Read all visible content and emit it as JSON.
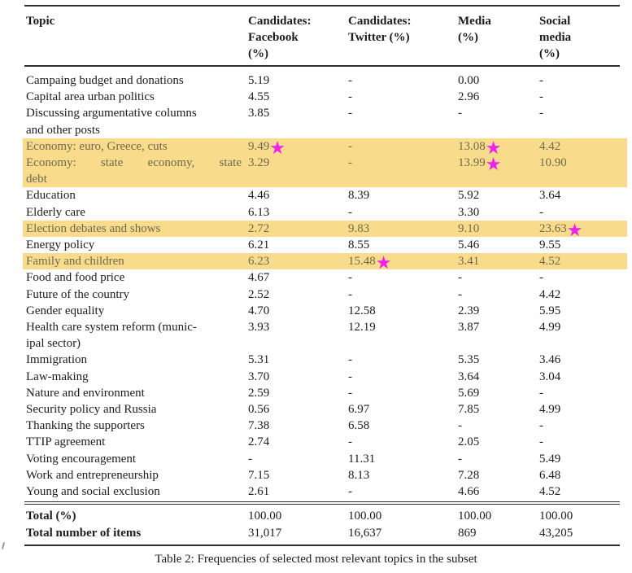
{
  "caption": "Table 2: Frequencies of selected most relevant topics in the subset",
  "icons": {
    "star": "★"
  },
  "colors": {
    "highlight_background": "#f9dc8b",
    "highlight_text": "#6f6950",
    "star_magenta": "#ee22ee",
    "rule": "#2e2e2e",
    "text": "#1c1c1c"
  },
  "header": {
    "topic": "Topic",
    "columns": [
      {
        "name": "candidates-facebook",
        "lines": [
          "Candidates:",
          "Facebook",
          "(%)"
        ]
      },
      {
        "name": "candidates-twitter",
        "lines": [
          "Candidates:",
          "Twitter (%)",
          ""
        ]
      },
      {
        "name": "media",
        "lines": [
          "Media",
          "(%)",
          ""
        ]
      },
      {
        "name": "social-media",
        "lines": [
          "Social",
          "media",
          "(%)"
        ]
      }
    ]
  },
  "rows": [
    {
      "highlight": false,
      "topic_lines": [
        {
          "t": "Campaing budget and donations",
          "stretch": false
        }
      ],
      "values": [
        {
          "v": "5.19",
          "star": false
        },
        {
          "v": "-",
          "star": false
        },
        {
          "v": "0.00",
          "star": false
        },
        {
          "v": "-",
          "star": false
        }
      ]
    },
    {
      "highlight": false,
      "topic_lines": [
        {
          "t": "Capital area urban politics",
          "stretch": false
        }
      ],
      "values": [
        {
          "v": "4.55",
          "star": false
        },
        {
          "v": "-",
          "star": false
        },
        {
          "v": "2.96",
          "star": false
        },
        {
          "v": "-",
          "star": false
        }
      ]
    },
    {
      "highlight": false,
      "topic_lines": [
        {
          "t": "Discussing argumentative columns",
          "stretch": false
        },
        {
          "t": "and other posts",
          "stretch": false
        }
      ],
      "values": [
        {
          "v": "3.85",
          "star": false
        },
        {
          "v": "-",
          "star": false
        },
        {
          "v": "-",
          "star": false
        },
        {
          "v": "-",
          "star": false
        }
      ]
    },
    {
      "highlight": true,
      "topic_lines": [
        {
          "t": "Economy: euro, Greece, cuts",
          "stretch": false
        }
      ],
      "values": [
        {
          "v": "9.49",
          "star": true
        },
        {
          "v": "-",
          "star": false
        },
        {
          "v": "13.08",
          "star": true
        },
        {
          "v": "4.42",
          "star": false
        }
      ]
    },
    {
      "highlight": true,
      "topic_lines": [
        {
          "t": "Economy: state economy, state",
          "stretch": true
        },
        {
          "t": "debt",
          "stretch": false
        }
      ],
      "values": [
        {
          "v": "3.29",
          "star": false
        },
        {
          "v": "-",
          "star": false
        },
        {
          "v": "13.99",
          "star": true
        },
        {
          "v": "10.90",
          "star": false
        }
      ]
    },
    {
      "highlight": false,
      "topic_lines": [
        {
          "t": "Education",
          "stretch": false
        }
      ],
      "values": [
        {
          "v": "4.46",
          "star": false
        },
        {
          "v": "8.39",
          "star": false
        },
        {
          "v": "5.92",
          "star": false
        },
        {
          "v": "3.64",
          "star": false
        }
      ]
    },
    {
      "highlight": false,
      "topic_lines": [
        {
          "t": "Elderly care",
          "stretch": false
        }
      ],
      "values": [
        {
          "v": "6.13",
          "star": false
        },
        {
          "v": "-",
          "star": false
        },
        {
          "v": "3.30",
          "star": false
        },
        {
          "v": "-",
          "star": false
        }
      ]
    },
    {
      "highlight": true,
      "topic_lines": [
        {
          "t": "Election debates and shows",
          "stretch": false
        }
      ],
      "values": [
        {
          "v": "2.72",
          "star": false
        },
        {
          "v": "9.83",
          "star": false
        },
        {
          "v": "9.10",
          "star": false
        },
        {
          "v": "23.63",
          "star": true
        }
      ]
    },
    {
      "highlight": false,
      "topic_lines": [
        {
          "t": "Energy policy",
          "stretch": false
        }
      ],
      "values": [
        {
          "v": "6.21",
          "star": false
        },
        {
          "v": "8.55",
          "star": false
        },
        {
          "v": "5.46",
          "star": false
        },
        {
          "v": "9.55",
          "star": false
        }
      ]
    },
    {
      "highlight": true,
      "topic_lines": [
        {
          "t": "Family and children",
          "stretch": false
        }
      ],
      "values": [
        {
          "v": "6.23",
          "star": false
        },
        {
          "v": "15.48",
          "star": true
        },
        {
          "v": "3.41",
          "star": false
        },
        {
          "v": "4.52",
          "star": false
        }
      ]
    },
    {
      "highlight": false,
      "topic_lines": [
        {
          "t": "Food and food price",
          "stretch": false
        }
      ],
      "values": [
        {
          "v": "4.67",
          "star": false
        },
        {
          "v": "-",
          "star": false
        },
        {
          "v": "-",
          "star": false
        },
        {
          "v": "-",
          "star": false
        }
      ]
    },
    {
      "highlight": false,
      "topic_lines": [
        {
          "t": "Future of the country",
          "stretch": false
        }
      ],
      "values": [
        {
          "v": "2.52",
          "star": false
        },
        {
          "v": "-",
          "star": false
        },
        {
          "v": "-",
          "star": false
        },
        {
          "v": "4.42",
          "star": false
        }
      ]
    },
    {
      "highlight": false,
      "topic_lines": [
        {
          "t": "Gender equality",
          "stretch": false
        }
      ],
      "values": [
        {
          "v": "4.70",
          "star": false
        },
        {
          "v": "12.58",
          "star": false
        },
        {
          "v": "2.39",
          "star": false
        },
        {
          "v": "5.95",
          "star": false
        }
      ]
    },
    {
      "highlight": false,
      "topic_lines": [
        {
          "t": "Health care system reform (munic-",
          "stretch": false
        },
        {
          "t": "ipal sector)",
          "stretch": false
        }
      ],
      "values": [
        {
          "v": "3.93",
          "star": false
        },
        {
          "v": "12.19",
          "star": false
        },
        {
          "v": "3.87",
          "star": false
        },
        {
          "v": "4.99",
          "star": false
        }
      ]
    },
    {
      "highlight": false,
      "topic_lines": [
        {
          "t": "Immigration",
          "stretch": false
        }
      ],
      "values": [
        {
          "v": "5.31",
          "star": false
        },
        {
          "v": "-",
          "star": false
        },
        {
          "v": "5.35",
          "star": false
        },
        {
          "v": "3.46",
          "star": false
        }
      ]
    },
    {
      "highlight": false,
      "topic_lines": [
        {
          "t": "Law-making",
          "stretch": false
        }
      ],
      "values": [
        {
          "v": "3.70",
          "star": false
        },
        {
          "v": "-",
          "star": false
        },
        {
          "v": "3.64",
          "star": false
        },
        {
          "v": "3.04",
          "star": false
        }
      ]
    },
    {
      "highlight": false,
      "topic_lines": [
        {
          "t": "Nature and environment",
          "stretch": false
        }
      ],
      "values": [
        {
          "v": "2.59",
          "star": false
        },
        {
          "v": "-",
          "star": false
        },
        {
          "v": "5.69",
          "star": false
        },
        {
          "v": "-",
          "star": false
        }
      ]
    },
    {
      "highlight": false,
      "topic_lines": [
        {
          "t": "Security policy and Russia",
          "stretch": false
        }
      ],
      "values": [
        {
          "v": "0.56",
          "star": false
        },
        {
          "v": "6.97",
          "star": false
        },
        {
          "v": "7.85",
          "star": false
        },
        {
          "v": "4.99",
          "star": false
        }
      ]
    },
    {
      "highlight": false,
      "topic_lines": [
        {
          "t": "Thanking the supporters",
          "stretch": false
        }
      ],
      "values": [
        {
          "v": "7.38",
          "star": false
        },
        {
          "v": "6.58",
          "star": false
        },
        {
          "v": "-",
          "star": false
        },
        {
          "v": "-",
          "star": false
        }
      ]
    },
    {
      "highlight": false,
      "topic_lines": [
        {
          "t": "TTIP agreement",
          "stretch": false
        }
      ],
      "values": [
        {
          "v": "2.74",
          "star": false
        },
        {
          "v": "-",
          "star": false
        },
        {
          "v": "2.05",
          "star": false
        },
        {
          "v": "-",
          "star": false
        }
      ]
    },
    {
      "highlight": false,
      "topic_lines": [
        {
          "t": "Voting encouragement",
          "stretch": false
        }
      ],
      "values": [
        {
          "v": "-",
          "star": false
        },
        {
          "v": "11.31",
          "star": false
        },
        {
          "v": "-",
          "star": false
        },
        {
          "v": "5.49",
          "star": false
        }
      ]
    },
    {
      "highlight": false,
      "topic_lines": [
        {
          "t": "Work and entrepreneurship",
          "stretch": false
        }
      ],
      "values": [
        {
          "v": "7.15",
          "star": false
        },
        {
          "v": "8.13",
          "star": false
        },
        {
          "v": "7.28",
          "star": false
        },
        {
          "v": "6.48",
          "star": false
        }
      ]
    },
    {
      "highlight": false,
      "topic_lines": [
        {
          "t": "Young and social exclusion",
          "stretch": false
        }
      ],
      "values": [
        {
          "v": "2.61",
          "star": false
        },
        {
          "v": "-",
          "star": false
        },
        {
          "v": "4.66",
          "star": false
        },
        {
          "v": "4.52",
          "star": false
        }
      ]
    }
  ],
  "totals": [
    {
      "label": "Total (%)",
      "values": [
        "100.00",
        "100.00",
        "100.00",
        "100.00"
      ]
    },
    {
      "label": "Total number of items",
      "values": [
        "31,017",
        "16,637",
        "869",
        "43,205"
      ]
    }
  ]
}
